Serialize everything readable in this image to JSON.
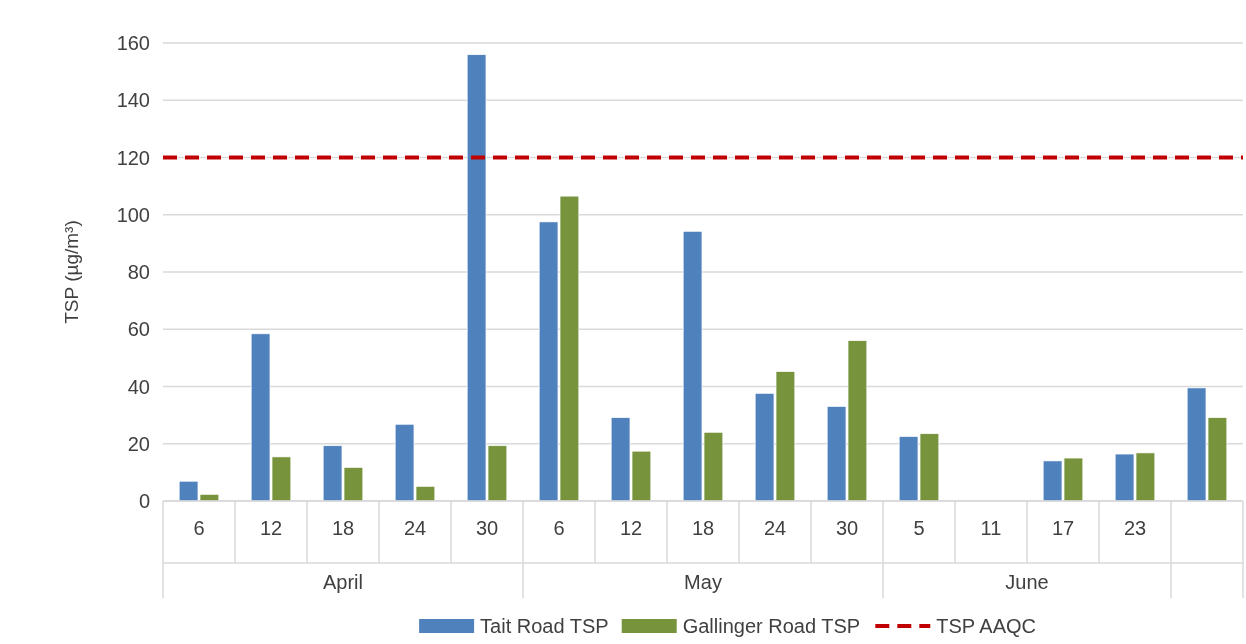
{
  "chart_data": {
    "type": "bar",
    "ylabel": "TSP (µg/m³)",
    "categories": [
      "6",
      "12",
      "18",
      "24",
      "30",
      "6",
      "12",
      "18",
      "24",
      "30",
      "5",
      "11",
      "17",
      "23",
      null
    ],
    "annotations": [
      "April",
      "May",
      "June"
    ],
    "series": [
      {
        "name": "Tait Road TSP",
        "color": "#4f81bd",
        "values": [
          6.9,
          58.4,
          19.3,
          26.8,
          155.9,
          97.5,
          29.1,
          94.2,
          37.6,
          33.0,
          22.5,
          null,
          14.0,
          16.4,
          39.5
        ]
      },
      {
        "name": "Gallinger Road TSP",
        "color": "#77933c",
        "values": [
          2.3,
          15.4,
          11.7,
          5.1,
          19.3,
          106.5,
          17.4,
          24.0,
          45.2,
          56.0,
          23.5,
          null,
          15.0,
          16.8,
          29.1
        ]
      }
    ],
    "ref_lines": [
      {
        "axis": "y",
        "value": 120,
        "label": "TSP AAQC",
        "color": "#c00000",
        "line_style": "dashed"
      }
    ],
    "ylim": [
      0,
      160
    ],
    "yticks": [
      0,
      20,
      40,
      60,
      80,
      100,
      120,
      140,
      160
    ],
    "grid": "y",
    "legend": "bottom"
  }
}
